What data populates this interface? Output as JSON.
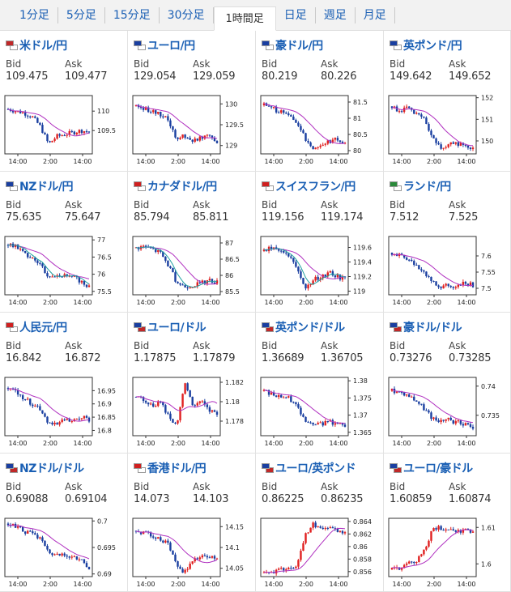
{
  "tabs": [
    "1分足",
    "5分足",
    "15分足",
    "30分足",
    "1時間足",
    "日足",
    "週足",
    "月足"
  ],
  "active_tab": "1時間足",
  "labels": {
    "bid": "Bid",
    "ask": "Ask"
  },
  "colors": {
    "link": "#1a5fb4",
    "up": "#e02020",
    "down": "#1a3fa0",
    "ma": "#b030c0",
    "ma2": "#20a0a0"
  },
  "pairs": [
    {
      "name": "米ドル/円",
      "flag_a": "#c02828",
      "flag_b": "#ffffff",
      "bid": "109.475",
      "ask": "109.477",
      "chart_data": {
        "type": "candlestick",
        "yticks": [
          "110",
          "109.5"
        ],
        "xticks": [
          "14:00",
          "2:00",
          "14:00"
        ],
        "ylim": [
          108.9,
          110.4
        ],
        "path": [
          110.05,
          110.0,
          109.95,
          109.85,
          109.6,
          109.15,
          109.35,
          109.4,
          109.45,
          109.5,
          109.47
        ],
        "ma_end": 109.47,
        "ma2": false
      }
    },
    {
      "name": "ユーロ/円",
      "flag_a": "#1a3fa0",
      "flag_b": "#ffffff",
      "bid": "129.054",
      "ask": "129.059",
      "chart_data": {
        "type": "candlestick",
        "yticks": [
          "130",
          "129.5",
          "129"
        ],
        "xticks": [
          "14:00",
          "2:00",
          "14:00"
        ],
        "ylim": [
          128.8,
          130.2
        ],
        "path": [
          129.95,
          129.9,
          129.8,
          129.75,
          129.6,
          129.15,
          129.25,
          129.1,
          129.2,
          129.3,
          129.05
        ],
        "ma_end": 129.15,
        "ma2": false
      }
    },
    {
      "name": "豪ドル/円",
      "flag_a": "#1a3fa0",
      "flag_b": "#ffffff",
      "bid": "80.219",
      "ask": "80.226",
      "chart_data": {
        "type": "candlestick",
        "yticks": [
          "81.5",
          "81",
          "80.5",
          "80"
        ],
        "xticks": [
          "14:00",
          "2:00",
          "14:00"
        ],
        "ylim": [
          79.9,
          81.7
        ],
        "path": [
          81.4,
          81.3,
          81.2,
          81.1,
          80.9,
          80.4,
          80.1,
          80.15,
          80.3,
          80.35,
          80.22
        ],
        "ma_end": 80.4,
        "ma2": false
      }
    },
    {
      "name": "英ポンド/円",
      "flag_a": "#1a3fa0",
      "flag_b": "#ffffff",
      "bid": "149.642",
      "ask": "149.652",
      "chart_data": {
        "type": "candlestick",
        "yticks": [
          "152",
          "151",
          "150"
        ],
        "xticks": [
          "14:00",
          "2:00",
          "14:00"
        ],
        "ylim": [
          149.4,
          152.1
        ],
        "path": [
          151.6,
          151.4,
          151.5,
          151.2,
          151.0,
          150.1,
          149.7,
          149.8,
          149.9,
          149.8,
          149.64
        ],
        "ma_end": 149.9,
        "ma2": false
      }
    },
    {
      "name": "NZドル/円",
      "flag_a": "#1a3fa0",
      "flag_b": "#ffffff",
      "bid": "75.635",
      "ask": "75.647",
      "chart_data": {
        "type": "candlestick",
        "yticks": [
          "77",
          "76.5",
          "76",
          "75.5"
        ],
        "xticks": [
          "14:00",
          "2:00",
          "14:00"
        ],
        "ylim": [
          75.4,
          77.1
        ],
        "path": [
          76.85,
          76.8,
          76.6,
          76.5,
          76.3,
          75.9,
          76.0,
          75.95,
          75.9,
          75.8,
          75.63
        ],
        "ma_end": 75.9,
        "ma2": true
      }
    },
    {
      "name": "カナダドル/円",
      "flag_a": "#d02020",
      "flag_b": "#ffffff",
      "bid": "85.794",
      "ask": "85.811",
      "chart_data": {
        "type": "candlestick",
        "yticks": [
          "87",
          "86.5",
          "86",
          "85.5"
        ],
        "xticks": [
          "14:00",
          "2:00",
          "14:00"
        ],
        "ylim": [
          85.4,
          87.2
        ],
        "path": [
          86.85,
          86.9,
          86.8,
          86.7,
          86.3,
          85.8,
          85.65,
          85.7,
          85.75,
          85.85,
          85.79
        ],
        "ma_end": 86.0,
        "ma2": true
      }
    },
    {
      "name": "スイスフラン/円",
      "flag_a": "#d02020",
      "flag_b": "#ffffff",
      "bid": "119.156",
      "ask": "119.174",
      "chart_data": {
        "type": "candlestick",
        "yticks": [
          "119.6",
          "119.4",
          "119.2",
          "119"
        ],
        "xticks": [
          "14:00",
          "2:00",
          "14:00"
        ],
        "ylim": [
          118.95,
          119.75
        ],
        "path": [
          119.55,
          119.6,
          119.55,
          119.5,
          119.3,
          119.05,
          119.15,
          119.2,
          119.25,
          119.2,
          119.16
        ],
        "ma_end": 119.25,
        "ma2": true
      }
    },
    {
      "name": "ランド/円",
      "flag_a": "#2a8a3a",
      "flag_b": "#ffffff",
      "bid": "7.512",
      "ask": "7.525",
      "chart_data": {
        "type": "candlestick",
        "yticks": [
          "7.6",
          "7.55",
          "7.5"
        ],
        "xticks": [
          "14:00",
          "2:00",
          "14:00"
        ],
        "ylim": [
          7.48,
          7.66
        ],
        "path": [
          7.61,
          7.6,
          7.59,
          7.57,
          7.55,
          7.52,
          7.5,
          7.51,
          7.5,
          7.52,
          7.51
        ],
        "ma_end": 7.53,
        "ma2": false
      }
    },
    {
      "name": "人民元/円",
      "flag_a": "#d02020",
      "flag_b": "#ffffff",
      "bid": "16.842",
      "ask": "16.872",
      "chart_data": {
        "type": "candlestick",
        "yticks": [
          "16.95",
          "16.9",
          "16.85",
          "16.8"
        ],
        "xticks": [
          "14:00",
          "2:00",
          "14:00"
        ],
        "ylim": [
          16.78,
          17.0
        ],
        "path": [
          16.96,
          16.95,
          16.92,
          16.9,
          16.88,
          16.83,
          16.82,
          16.84,
          16.83,
          16.85,
          16.84
        ],
        "ma_end": 16.85,
        "ma2": false
      }
    },
    {
      "name": "ユーロ/ドル",
      "flag_a": "#1a3fa0",
      "flag_b": "#c02828",
      "bid": "1.17875",
      "ask": "1.17879",
      "chart_data": {
        "type": "candlestick",
        "yticks": [
          "1.182",
          "1.18",
          "1.178"
        ],
        "xticks": [
          "14:00",
          "2:00",
          "14:00"
        ],
        "ylim": [
          1.1765,
          1.1825
        ],
        "path": [
          1.1805,
          1.1802,
          1.1795,
          1.18,
          1.1785,
          1.1775,
          1.182,
          1.1795,
          1.18,
          1.179,
          1.1788
        ],
        "ma_end": 1.1793,
        "ma2": false
      }
    },
    {
      "name": "英ポンド/ドル",
      "flag_a": "#1a3fa0",
      "flag_b": "#c02828",
      "bid": "1.36689",
      "ask": "1.36705",
      "chart_data": {
        "type": "candlestick",
        "yticks": [
          "1.38",
          "1.375",
          "1.37",
          "1.365"
        ],
        "xticks": [
          "14:00",
          "2:00",
          "14:00"
        ],
        "ylim": [
          1.364,
          1.381
        ],
        "path": [
          1.377,
          1.376,
          1.3755,
          1.375,
          1.373,
          1.369,
          1.367,
          1.3675,
          1.368,
          1.3675,
          1.3669
        ],
        "ma_end": 1.3685,
        "ma2": false
      }
    },
    {
      "name": "豪ドル/ドル",
      "flag_a": "#1a3fa0",
      "flag_b": "#c02828",
      "bid": "0.73276",
      "ask": "0.73285",
      "chart_data": {
        "type": "candlestick",
        "yticks": [
          "0.74",
          "0.735"
        ],
        "xticks": [
          "14:00",
          "2:00",
          "14:00"
        ],
        "ylim": [
          0.7315,
          0.7415
        ],
        "path": [
          0.7392,
          0.739,
          0.7385,
          0.7375,
          0.736,
          0.7345,
          0.734,
          0.7342,
          0.7338,
          0.7335,
          0.7328
        ],
        "ma_end": 0.7345,
        "ma2": false
      }
    },
    {
      "name": "NZドル/ドル",
      "flag_a": "#1a3fa0",
      "flag_b": "#c02828",
      "bid": "0.69088",
      "ask": "0.69104",
      "chart_data": {
        "type": "candlestick",
        "yticks": [
          "0.7",
          "0.695",
          "0.69"
        ],
        "xticks": [
          "14:00",
          "2:00",
          "14:00"
        ],
        "ylim": [
          0.6895,
          0.7005
        ],
        "path": [
          0.6995,
          0.699,
          0.698,
          0.6975,
          0.6965,
          0.694,
          0.6935,
          0.6938,
          0.693,
          0.6925,
          0.6909
        ],
        "ma_end": 0.6935,
        "ma2": false
      }
    },
    {
      "name": "香港ドル/円",
      "flag_a": "#d02020",
      "flag_b": "#ffffff",
      "bid": "14.073",
      "ask": "14.103",
      "chart_data": {
        "type": "candlestick",
        "yticks": [
          "14.15",
          "14.1",
          "14.05"
        ],
        "xticks": [
          "14:00",
          "2:00",
          "14:00"
        ],
        "ylim": [
          14.03,
          14.17
        ],
        "path": [
          14.14,
          14.135,
          14.13,
          14.12,
          14.11,
          14.06,
          14.04,
          14.07,
          14.075,
          14.08,
          14.073
        ],
        "ma_end": 14.085,
        "ma2": false
      }
    },
    {
      "name": "ユーロ/英ポンド",
      "flag_a": "#1a3fa0",
      "flag_b": "#c02828",
      "bid": "0.86225",
      "ask": "0.86235",
      "chart_data": {
        "type": "candlestick",
        "yticks": [
          "0.864",
          "0.862",
          "0.86",
          "0.858",
          "0.856"
        ],
        "xticks": [
          "14:00",
          "2:00",
          "14:00"
        ],
        "ylim": [
          0.8552,
          0.8645
        ],
        "path": [
          0.8558,
          0.856,
          0.8562,
          0.8565,
          0.857,
          0.8615,
          0.8635,
          0.863,
          0.8628,
          0.8625,
          0.8622
        ],
        "ma_end": 0.8605,
        "ma2": false
      }
    },
    {
      "name": "ユーロ/豪ドル",
      "flag_a": "#1a3fa0",
      "flag_b": "#c02828",
      "bid": "1.60859",
      "ask": "1.60874",
      "chart_data": {
        "type": "candlestick",
        "yticks": [
          "1.61",
          "1.6"
        ],
        "xticks": [
          "14:00",
          "2:00",
          "14:00"
        ],
        "ylim": [
          1.5965,
          1.6125
        ],
        "path": [
          1.5985,
          1.599,
          1.6,
          1.601,
          1.6035,
          1.6095,
          1.61,
          1.6092,
          1.6085,
          1.6098,
          1.6086
        ],
        "ma_end": 1.6075,
        "ma2": false
      }
    }
  ]
}
